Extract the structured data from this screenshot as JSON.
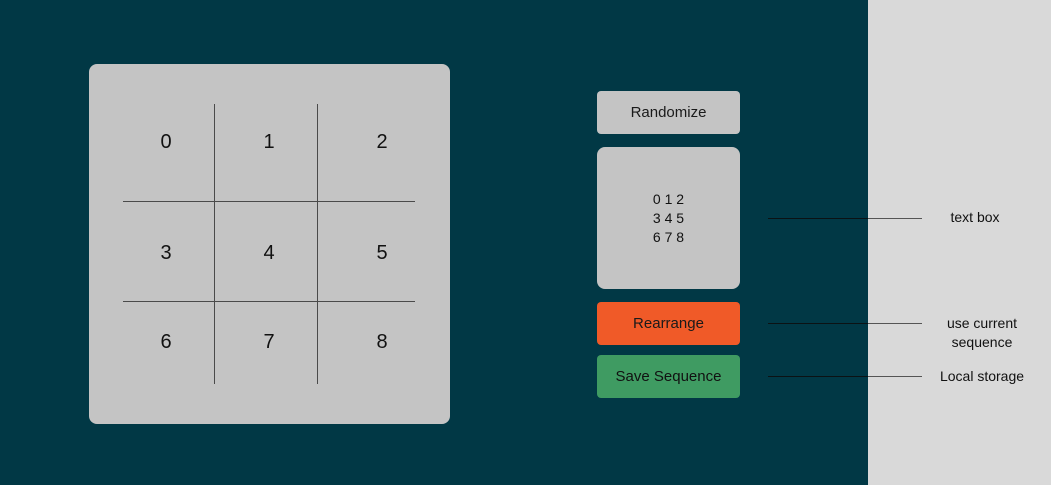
{
  "board": {
    "cells": [
      "0",
      "1",
      "2",
      "3",
      "4",
      "5",
      "6",
      "7",
      "8"
    ]
  },
  "controls": {
    "randomize_label": "Randomize",
    "textbox_lines": [
      "0 1 2",
      "3 4 5",
      "6 7 8"
    ],
    "rearrange_label": "Rearrange",
    "save_label": "Save Sequence"
  },
  "annotations": {
    "textbox_note": "text box",
    "rearrange_note_line1": "use current",
    "rearrange_note_line2": "sequence",
    "save_note": "Local storage"
  },
  "colors": {
    "app_background": "#013845",
    "page_background": "#d9d9d9",
    "panel": "#c4c4c4",
    "rearrange_button": "#f05a28",
    "save_button": "#3f9b62"
  }
}
